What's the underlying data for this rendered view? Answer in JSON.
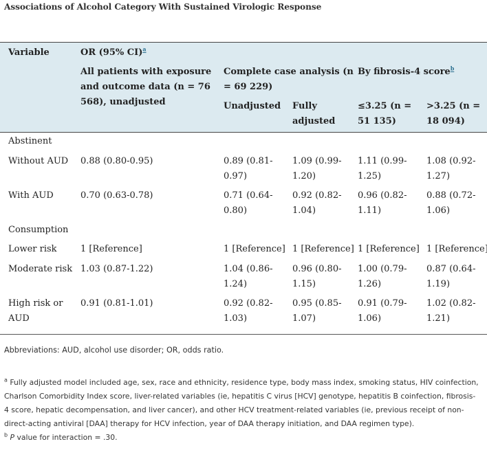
{
  "caption": "Associations of Alcohol Category With Sustained Virologic Response",
  "header": {
    "variable": "Variable",
    "or_label": "OR (95% CI)",
    "or_mark": "a",
    "all_patients_1": "All patients with exposure",
    "all_patients_2": "and outcome data (n = 76",
    "all_patients_3": "568), unadjusted",
    "complete_1": "Complete case analysis (n",
    "complete_2": "= 69 229)",
    "unadjusted": "Unadjusted",
    "fully_1": "Fully",
    "fully_2": "adjusted",
    "fib4_label": "By fibrosis-4 score",
    "fib4_mark": "b",
    "low_1": "≤3.25 (n =",
    "low_2": "51 135)",
    "high_1": ">3.25 (n =",
    "high_2": "18 094)"
  },
  "groups": {
    "abstinent": "Abstinent",
    "consumption": "Consumption"
  },
  "rows": {
    "without_aud": {
      "label": "Without AUD",
      "all": "0.88 (0.80-0.95)",
      "unadj_1": "0.89 (0.81-",
      "unadj_2": "0.97)",
      "full_1": "1.09 (0.99-",
      "full_2": "1.20)",
      "low_1": "1.11 (0.99-",
      "low_2": "1.25)",
      "high_1": "1.08 (0.92-",
      "high_2": "1.27)"
    },
    "with_aud": {
      "label": "With AUD",
      "all": "0.70 (0.63-0.78)",
      "unadj_1": "0.71 (0.64-",
      "unadj_2": "0.80)",
      "full_1": "0.92 (0.82-",
      "full_2": "1.04)",
      "low_1": "0.96 (0.82-",
      "low_2": "1.11)",
      "high_1": "0.88 (0.72-",
      "high_2": "1.06)"
    },
    "lower_risk": {
      "label": "Lower risk",
      "all": "1 [Reference]",
      "unadj": "1 [Reference]",
      "full": "1 [Reference]",
      "low": "1 [Reference]",
      "high": "1 [Reference]"
    },
    "moderate_risk": {
      "label": "Moderate risk",
      "all": "1.03 (0.87-1.22)",
      "unadj_1": "1.04 (0.86-",
      "unadj_2": "1.24)",
      "full_1": "0.96 (0.80-",
      "full_2": "1.15)",
      "low_1": "1.00 (0.79-",
      "low_2": "1.26)",
      "high_1": "0.87 (0.64-",
      "high_2": "1.19)"
    },
    "high_risk": {
      "label_1": "High risk or",
      "label_2": "AUD",
      "all": "0.91 (0.81-1.01)",
      "unadj_1": "0.92 (0.82-",
      "unadj_2": "1.03)",
      "full_1": "0.95 (0.85-",
      "full_2": "1.07)",
      "low_1": "0.91 (0.79-",
      "low_2": "1.06)",
      "high_1": "1.02 (0.82-",
      "high_2": "1.21)"
    }
  },
  "footnotes": {
    "abbreviations": "Abbreviations: AUD, alcohol use disorder; OR, odds ratio.",
    "a_mark": "a",
    "a_line1": "Fully adjusted model included age, sex, race and ethnicity, residence type, body mass index, smoking status, HIV coinfection,",
    "a_line2": "Charlson Comorbidity Index score, liver-related variables (ie, hepatitis C virus [HCV] genotype, hepatitis B coinfection, fibrosis-",
    "a_line3": "4 score, hepatic decompensation, and liver cancer), and other HCV treatment-related variables (ie, previous receipt of non-",
    "a_line4": "direct-acting antiviral [DAA] therapy for HCV infection, year of DAA therapy initiation, and DAA regimen type).",
    "b_mark": "b",
    "b_p": "P",
    "b_text": " value for interaction = .30."
  }
}
